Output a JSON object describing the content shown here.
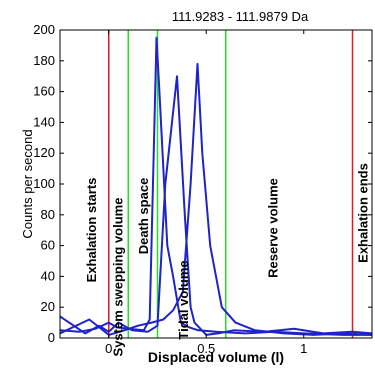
{
  "chart_data": {
    "type": "line",
    "title": "111.9283 - 111.9879 Da",
    "xlabel": "Displaced volume (l)",
    "ylabel": "Counts per second",
    "xlim": [
      -0.25,
      1.35
    ],
    "ylim": [
      0,
      200
    ],
    "x_ticks": [
      0,
      0.5,
      1
    ],
    "x_tick_labels": [
      "0",
      "0.5",
      "1"
    ],
    "y_ticks": [
      0,
      20,
      40,
      60,
      80,
      100,
      120,
      140,
      160,
      180,
      200
    ],
    "y_tick_labels": [
      "0",
      "20",
      "40",
      "60",
      "80",
      "100",
      "120",
      "140",
      "160",
      "180",
      "200"
    ],
    "grid": false,
    "series": [
      {
        "color": "#1f23c8",
        "x": [
          -0.25,
          -0.15,
          -0.07,
          0.0,
          0.04,
          0.1,
          0.18,
          0.21,
          0.245,
          0.26,
          0.3,
          0.33,
          0.37,
          0.41,
          0.46,
          0.55,
          0.7,
          0.85,
          1.0,
          1.2,
          1.35
        ],
        "y": [
          5,
          4,
          6,
          10,
          7,
          6,
          5,
          12,
          195,
          160,
          60,
          40,
          10,
          7,
          5,
          4,
          3,
          4,
          3,
          2,
          2
        ]
      },
      {
        "color": "#1f23c8",
        "x": [
          -0.25,
          -0.12,
          -0.05,
          0.0,
          0.05,
          0.12,
          0.2,
          0.25,
          0.29,
          0.35,
          0.39,
          0.42,
          0.44,
          0.5,
          0.56,
          0.64,
          0.8,
          0.95,
          1.1,
          1.25,
          1.35
        ],
        "y": [
          14,
          3,
          8,
          4,
          10,
          5,
          4,
          8,
          100,
          170,
          80,
          20,
          10,
          2,
          3,
          5,
          4,
          6,
          3,
          4,
          3
        ]
      },
      {
        "color": "#1f23c8",
        "x": [
          -0.25,
          -0.1,
          0.0,
          0.08,
          0.15,
          0.22,
          0.28,
          0.33,
          0.38,
          0.42,
          0.455,
          0.48,
          0.52,
          0.58,
          0.65,
          0.75,
          0.9,
          1.05,
          1.2,
          1.35
        ],
        "y": [
          3,
          12,
          2,
          5,
          8,
          10,
          12,
          18,
          30,
          100,
          178,
          120,
          60,
          20,
          10,
          5,
          3,
          2,
          3,
          2
        ]
      }
    ],
    "vlines": [
      {
        "x": 0.0,
        "color": "#e31a1c"
      },
      {
        "x": 0.1,
        "color": "#23e023"
      },
      {
        "x": 0.25,
        "color": "#23e023"
      },
      {
        "x": 0.6,
        "color": "#23e023"
      },
      {
        "x": 1.25,
        "color": "#e31a1c"
      }
    ],
    "annotations": [
      {
        "text": "Exhalation starts",
        "x": -0.09
      },
      {
        "text": "System swepping volume",
        "x": 0.045
      },
      {
        "text": "Death space",
        "x": 0.175
      },
      {
        "text": "Tidal volume",
        "x": 0.38
      },
      {
        "text": "Reserve volume",
        "x": 0.84
      },
      {
        "text": "Exhalation ends",
        "x": 1.3
      }
    ]
  }
}
